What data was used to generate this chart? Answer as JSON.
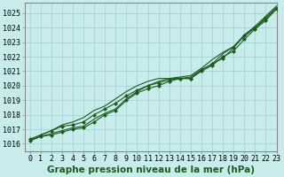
{
  "title": "Graphe pression niveau de la mer (hPa)",
  "bg_color": "#c8ecec",
  "grid_color": "#a8d4d4",
  "line_color": "#1a5c1a",
  "xlim": [
    -0.5,
    23
  ],
  "ylim": [
    1015.5,
    1025.7
  ],
  "xticks": [
    0,
    1,
    2,
    3,
    4,
    5,
    6,
    7,
    8,
    9,
    10,
    11,
    12,
    13,
    14,
    15,
    16,
    17,
    18,
    19,
    20,
    21,
    22,
    23
  ],
  "yticks": [
    1016,
    1017,
    1018,
    1019,
    1020,
    1021,
    1022,
    1023,
    1024,
    1025
  ],
  "series": [
    [
      1016.2,
      1016.5,
      1016.6,
      1016.8,
      1017.0,
      1017.1,
      1017.5,
      1018.0,
      1018.3,
      1019.0,
      1019.5,
      1019.8,
      1020.0,
      1020.3,
      1020.5,
      1020.5,
      1021.1,
      1021.5,
      1021.9,
      1022.6,
      1023.5,
      1024.0,
      1024.6,
      1025.3
    ],
    [
      1016.2,
      1016.5,
      1016.7,
      1016.9,
      1017.1,
      1017.2,
      1017.7,
      1018.1,
      1018.4,
      1019.1,
      1019.6,
      1020.0,
      1020.3,
      1020.5,
      1020.5,
      1020.6,
      1021.1,
      1021.5,
      1022.2,
      1022.7,
      1023.4,
      1024.0,
      1024.7,
      1025.4
    ],
    [
      1016.3,
      1016.6,
      1016.9,
      1017.2,
      1017.3,
      1017.5,
      1018.0,
      1018.4,
      1018.8,
      1019.3,
      1019.7,
      1020.0,
      1020.2,
      1020.4,
      1020.5,
      1020.5,
      1021.0,
      1021.4,
      1022.0,
      1022.4,
      1023.2,
      1023.9,
      1024.5,
      1025.3
    ],
    [
      1016.3,
      1016.6,
      1016.9,
      1017.3,
      1017.5,
      1017.8,
      1018.3,
      1018.6,
      1019.1,
      1019.6,
      1020.0,
      1020.3,
      1020.5,
      1020.5,
      1020.6,
      1020.7,
      1021.2,
      1021.8,
      1022.3,
      1022.7,
      1023.5,
      1024.1,
      1024.8,
      1025.5
    ]
  ],
  "marker_series": [
    0,
    2
  ],
  "marker": "D",
  "marker_size": 2,
  "title_fontsize": 7.5,
  "tick_fontsize": 6,
  "spine_color": "#888888"
}
